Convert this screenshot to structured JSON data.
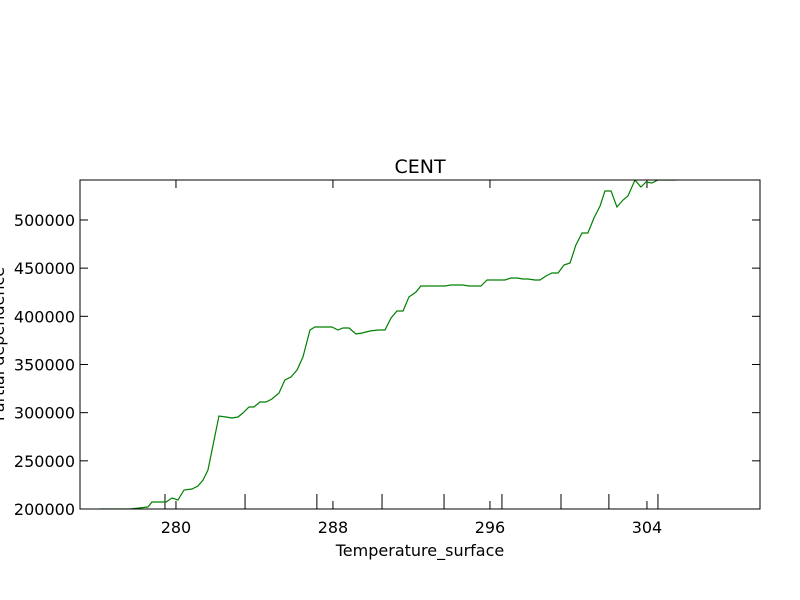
{
  "chart_data": {
    "type": "line",
    "title": "CENT",
    "xlabel": "Temperature_surface",
    "ylabel": "Partial dependence",
    "x": [
      276.13,
      277.66,
      278.57,
      278.78,
      278.93,
      279.49,
      279.8,
      280.1,
      280.41,
      280.82,
      281.12,
      281.38,
      281.63,
      281.89,
      282.19,
      282.55,
      282.85,
      283.16,
      283.41,
      283.72,
      283.97,
      284.28,
      284.59,
      284.89,
      285.25,
      285.55,
      285.86,
      286.17,
      286.47,
      286.83,
      287.08,
      287.44,
      287.95,
      288.25,
      288.51,
      288.82,
      289.17,
      289.48,
      289.89,
      290.29,
      290.65,
      290.96,
      291.26,
      291.57,
      291.87,
      292.23,
      292.48,
      292.79,
      293.1,
      293.71,
      294.01,
      294.32,
      294.62,
      294.93,
      295.54,
      295.85,
      296.15,
      296.76,
      297.07,
      297.38,
      297.68,
      297.94,
      298.29,
      298.55,
      298.85,
      299.16,
      299.47,
      299.77,
      300.08,
      300.38,
      300.69,
      300.99,
      301.3,
      301.61,
      301.86,
      302.17,
      302.47,
      302.78,
      303.03,
      303.39,
      303.69,
      303.95,
      304.25,
      304.56,
      304.87,
      305.48,
      305.78,
      306.19
    ],
    "values": [
      200000,
      200000,
      202076,
      207266,
      207266,
      207266,
      211418,
      209342,
      219722,
      220760,
      223874,
      230102,
      240482,
      266432,
      296534,
      295496,
      294458,
      295496,
      299648,
      305876,
      305876,
      311066,
      311066,
      314180,
      320408,
      333902,
      337016,
      344282,
      357776,
      385802,
      388916,
      388916,
      388916,
      385802,
      387878,
      387878,
      381650,
      382688,
      384764,
      385802,
      385802,
      398258,
      405524,
      405524,
      420056,
      425246,
      431474,
      431474,
      431474,
      431474,
      432512,
      432512,
      432512,
      431474,
      431474,
      437702,
      437702,
      437702,
      439778,
      439778,
      438740,
      438740,
      437702,
      437702,
      441854,
      444968,
      444968,
      453272,
      455348,
      474032,
      486488,
      486488,
      502058,
      514514,
      530084,
      530084,
      513476,
      520742,
      524894,
      541502,
      534236,
      539426,
      538388,
      541502,
      541502,
      541502,
      542540,
      543578
    ],
    "series_color": "#008000",
    "deciles_x": [
      279.44,
      283.52,
      287.18,
      290.5,
      293.66,
      296.61,
      299.62,
      302.06,
      304.56
    ],
    "xlim": [
      275.11,
      309.76
    ],
    "xticks": [
      280,
      288,
      296,
      304
    ],
    "ylim": [
      200000,
      541500
    ],
    "yticks": [
      200000,
      250000,
      300000,
      350000,
      400000,
      450000,
      500000
    ]
  }
}
